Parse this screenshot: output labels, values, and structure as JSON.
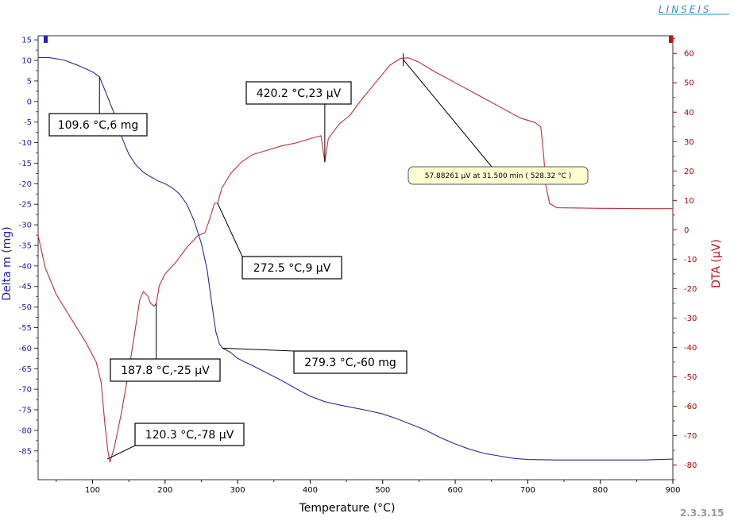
{
  "logo": "LINSEIS",
  "figure_label": "2.3.3.15",
  "chart_data": {
    "type": "line",
    "xlabel": "Temperature (°C)",
    "ylabel_left": "Delta m (mg)",
    "ylabel_right": "DTA (µV)",
    "xlim": [
      25,
      900
    ],
    "ylim_left": [
      -92,
      16
    ],
    "ylim_right": [
      -85,
      66
    ],
    "x_ticks": [
      100,
      200,
      300,
      400,
      500,
      600,
      700,
      800,
      900
    ],
    "y_ticks_left": [
      15,
      10,
      5,
      0,
      -5,
      -10,
      -15,
      -20,
      -25,
      -30,
      -35,
      -40,
      -45,
      -50,
      -55,
      -60,
      -65,
      -70,
      -75,
      -80,
      -85
    ],
    "y_ticks_right": [
      60,
      50,
      40,
      30,
      20,
      10,
      0,
      -10,
      -20,
      -30,
      -40,
      -50,
      -60,
      -70,
      -80
    ],
    "colors": {
      "tg": "#2a2aa0",
      "dta": "#c03030",
      "left_axis": "#1f1fa8",
      "right_axis": "#b00000"
    },
    "series": [
      {
        "axis": "left",
        "color": "#2a2aa0",
        "points": [
          [
            25,
            10.7
          ],
          [
            40,
            10.7
          ],
          [
            60,
            10.1
          ],
          [
            80,
            8.8
          ],
          [
            100,
            7.2
          ],
          [
            109.6,
            6
          ],
          [
            120,
            1.5
          ],
          [
            130,
            -3
          ],
          [
            140,
            -8.5
          ],
          [
            150,
            -12.8
          ],
          [
            160,
            -15.5
          ],
          [
            170,
            -17.2
          ],
          [
            180,
            -18.3
          ],
          [
            190,
            -19.3
          ],
          [
            200,
            -20
          ],
          [
            210,
            -21
          ],
          [
            220,
            -22.5
          ],
          [
            230,
            -25
          ],
          [
            240,
            -29
          ],
          [
            250,
            -34.5
          ],
          [
            258,
            -41
          ],
          [
            265,
            -50
          ],
          [
            270,
            -56
          ],
          [
            275,
            -59
          ],
          [
            279.3,
            -60
          ],
          [
            290,
            -61
          ],
          [
            300,
            -62.5
          ],
          [
            320,
            -64.2
          ],
          [
            340,
            -66
          ],
          [
            360,
            -67.8
          ],
          [
            380,
            -69.8
          ],
          [
            400,
            -71.7
          ],
          [
            420,
            -73
          ],
          [
            440,
            -73.8
          ],
          [
            460,
            -74.5
          ],
          [
            480,
            -75.2
          ],
          [
            500,
            -76
          ],
          [
            520,
            -77.2
          ],
          [
            540,
            -78.6
          ],
          [
            560,
            -80
          ],
          [
            580,
            -81.8
          ],
          [
            600,
            -83.3
          ],
          [
            620,
            -84.6
          ],
          [
            640,
            -85.6
          ],
          [
            660,
            -86.2
          ],
          [
            680,
            -86.8
          ],
          [
            700,
            -87.1
          ],
          [
            740,
            -87.2
          ],
          [
            800,
            -87.2
          ],
          [
            860,
            -87.2
          ],
          [
            900,
            -87
          ]
        ]
      },
      {
        "axis": "right",
        "color": "#c03030",
        "points": [
          [
            25,
            -2
          ],
          [
            35,
            -13
          ],
          [
            50,
            -22
          ],
          [
            70,
            -30
          ],
          [
            90,
            -38
          ],
          [
            105,
            -45
          ],
          [
            112,
            -52
          ],
          [
            117,
            -66
          ],
          [
            121,
            -75
          ],
          [
            124,
            -79
          ],
          [
            130,
            -74
          ],
          [
            140,
            -62
          ],
          [
            150,
            -48
          ],
          [
            160,
            -32
          ],
          [
            165,
            -24
          ],
          [
            170,
            -21
          ],
          [
            176,
            -22.5
          ],
          [
            180,
            -25
          ],
          [
            185,
            -26
          ],
          [
            188,
            -25
          ],
          [
            192,
            -19
          ],
          [
            200,
            -15
          ],
          [
            215,
            -11
          ],
          [
            230,
            -6
          ],
          [
            245,
            -2
          ],
          [
            255,
            -1
          ],
          [
            262,
            4
          ],
          [
            268,
            9
          ],
          [
            272.5,
            9
          ],
          [
            278,
            14
          ],
          [
            290,
            19
          ],
          [
            305,
            23
          ],
          [
            320,
            25.5
          ],
          [
            340,
            27
          ],
          [
            360,
            28.5
          ],
          [
            380,
            29.5
          ],
          [
            400,
            31
          ],
          [
            415,
            32
          ],
          [
            420.2,
            23
          ],
          [
            425,
            31
          ],
          [
            440,
            36
          ],
          [
            455,
            39
          ],
          [
            470,
            44
          ],
          [
            490,
            50
          ],
          [
            510,
            56
          ],
          [
            525,
            58.3
          ],
          [
            535,
            58.5
          ],
          [
            550,
            57
          ],
          [
            570,
            54
          ],
          [
            600,
            50
          ],
          [
            630,
            46
          ],
          [
            660,
            42
          ],
          [
            690,
            38
          ],
          [
            710,
            36.5
          ],
          [
            718,
            35
          ],
          [
            722,
            25
          ],
          [
            725,
            15
          ],
          [
            730,
            9
          ],
          [
            740,
            7.5
          ],
          [
            800,
            7.3
          ],
          [
            860,
            7.2
          ],
          [
            900,
            7.2
          ]
        ]
      }
    ],
    "annotations": [
      {
        "text": "109.6 °C,6 mg",
        "x": 109.6,
        "y": 6,
        "axis": "left"
      },
      {
        "text": "420.2 °C,23 µV",
        "x": 420.2,
        "y": 23,
        "axis": "right"
      },
      {
        "text": "272.5 °C,9 µV",
        "x": 272.5,
        "y": 9,
        "axis": "right"
      },
      {
        "text": "187.8 °C,-25 µV",
        "x": 187.8,
        "y": -25,
        "axis": "right"
      },
      {
        "text": "279.3 °C,-60 mg",
        "x": 279.3,
        "y": -60,
        "axis": "left"
      },
      {
        "text": "120.3 °C,-78 µV",
        "x": 120.3,
        "y": -78,
        "axis": "right"
      }
    ],
    "tooltip": {
      "text": "57.88261 µV at 31.500 min ( 528.32 °C )",
      "x": 528.32,
      "y": 57.88261,
      "axis": "right"
    }
  }
}
